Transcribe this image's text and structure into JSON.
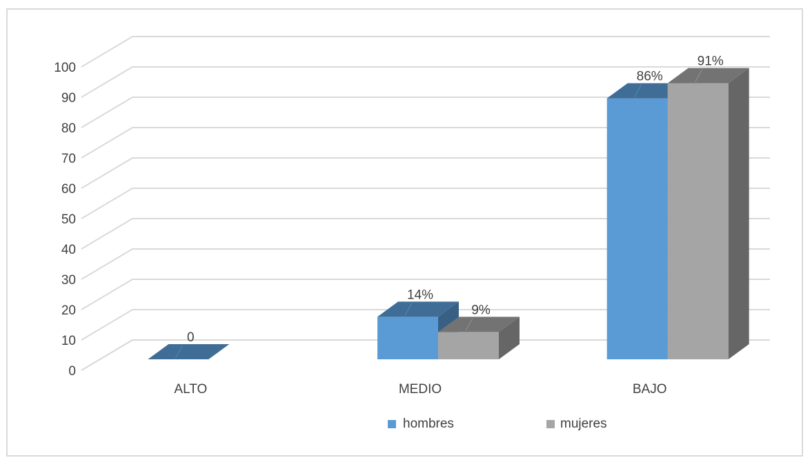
{
  "chart_data": {
    "type": "bar",
    "variant": "3d-clustered-column",
    "categories": [
      "ALTO",
      "MEDIO",
      "BAJO"
    ],
    "series": [
      {
        "name": "hombres",
        "values": [
          0,
          14,
          86
        ],
        "labels": [
          "0",
          "14%",
          "86%"
        ],
        "color": "#5b9bd5"
      },
      {
        "name": "mujeres",
        "values": [
          null,
          9,
          91
        ],
        "labels": [
          "",
          "9%",
          "91%"
        ],
        "color": "#a5a5a5"
      }
    ],
    "yticks": [
      "0",
      "10",
      "20",
      "30",
      "40",
      "50",
      "60",
      "70",
      "80",
      "90",
      "100"
    ],
    "ylim": [
      0,
      100
    ],
    "grid": true,
    "legend": "bottom",
    "title": "",
    "xlabel": "",
    "ylabel": ""
  }
}
